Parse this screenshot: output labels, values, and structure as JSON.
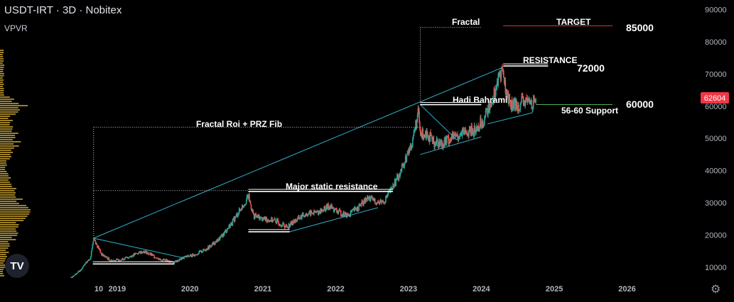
{
  "header": {
    "symbol": "USDT-IRT",
    "timeframe": "3D",
    "exchange": "Nobitex",
    "separator": "·",
    "indicator": "VPVR"
  },
  "price_badge": {
    "value": "62604",
    "color": "#f23645"
  },
  "logo_text": "TV",
  "colors": {
    "background": "#000000",
    "candle_up": "#26a69a",
    "candle_down": "#ef5350",
    "trendline": "#2fb3c9",
    "target_line": "#e53935",
    "support_line": "#4caf50",
    "volume_profile": "#b8962e",
    "text": "#ffffff",
    "axis_text": "#b2b5be"
  },
  "icons": {
    "settings": "gear-icon",
    "brand": "tradingview-logo-icon"
  },
  "annotations": {
    "fractal": "Fractal",
    "target": "TARGET",
    "target_value": "85000",
    "resistance": "RESISTANCE",
    "resistance_value": "72000",
    "hadi": "Hadi Bahrami",
    "support_value": "60000",
    "support_label": "56-60 Support",
    "fractal_roi": "Fractal Roi + PRZ Fib",
    "major_static": "Major static resistance"
  },
  "chart_data": {
    "type": "candlestick",
    "symbol": "USDT-IRT",
    "interval": "3D",
    "y_axis": {
      "scale": "linear",
      "range": [
        6000,
        93000
      ],
      "ticks": [
        10000,
        20000,
        30000,
        40000,
        50000,
        60000,
        70000,
        80000,
        90000
      ],
      "tick_labels": [
        "10000",
        "20000",
        "30000",
        "40000",
        "50000",
        "60000",
        "70000",
        "80000",
        "90000"
      ]
    },
    "x_axis": {
      "range": [
        "2018-05-15",
        "2027-01-01"
      ],
      "ticks": [
        "2018-10-01",
        "2019-01-01",
        "2020-01-01",
        "2021-01-01",
        "2022-01-01",
        "2023-01-01",
        "2024-01-01",
        "2025-01-01",
        "2026-01-01"
      ],
      "tick_labels": [
        "10",
        "2019",
        "2020",
        "2021",
        "2022",
        "2023",
        "2024",
        "2025",
        "2026"
      ]
    },
    "last_price": 62604,
    "price_path": [
      [
        "2018-05-15",
        6800
      ],
      [
        "2018-07-01",
        9000
      ],
      [
        "2018-08-20",
        13000
      ],
      [
        "2018-09-05",
        19000
      ],
      [
        "2018-10-15",
        14000
      ],
      [
        "2018-12-01",
        12000
      ],
      [
        "2019-02-01",
        12500
      ],
      [
        "2019-04-01",
        14000
      ],
      [
        "2019-05-15",
        15000
      ],
      [
        "2019-08-01",
        12500
      ],
      [
        "2019-10-15",
        11500
      ],
      [
        "2019-12-01",
        13000
      ],
      [
        "2020-02-01",
        14000
      ],
      [
        "2020-04-01",
        16000
      ],
      [
        "2020-06-01",
        19000
      ],
      [
        "2020-08-01",
        24000
      ],
      [
        "2020-10-01",
        30000
      ],
      [
        "2020-10-20",
        32000
      ],
      [
        "2020-11-15",
        26000
      ],
      [
        "2021-01-01",
        25000
      ],
      [
        "2021-03-01",
        24500
      ],
      [
        "2021-05-01",
        22500
      ],
      [
        "2021-06-01",
        24000
      ],
      [
        "2021-08-01",
        26500
      ],
      [
        "2021-10-01",
        27000
      ],
      [
        "2021-12-01",
        29000
      ],
      [
        "2022-01-01",
        27500
      ],
      [
        "2022-03-01",
        26000
      ],
      [
        "2022-05-01",
        29000
      ],
      [
        "2022-06-15",
        31500
      ],
      [
        "2022-08-01",
        30000
      ],
      [
        "2022-09-01",
        30500
      ],
      [
        "2022-10-15",
        35000
      ],
      [
        "2022-12-01",
        41000
      ],
      [
        "2023-01-15",
        48000
      ],
      [
        "2023-02-20",
        58000
      ],
      [
        "2023-03-01",
        51000
      ],
      [
        "2023-04-01",
        52000
      ],
      [
        "2023-05-01",
        49000
      ],
      [
        "2023-06-15",
        48500
      ],
      [
        "2023-08-01",
        50000
      ],
      [
        "2023-10-01",
        51500
      ],
      [
        "2023-12-01",
        52500
      ],
      [
        "2024-01-15",
        56000
      ],
      [
        "2024-03-01",
        63000
      ],
      [
        "2024-04-15",
        72000
      ],
      [
        "2024-05-01",
        65000
      ],
      [
        "2024-06-01",
        60000
      ],
      [
        "2024-07-01",
        60500
      ],
      [
        "2024-08-15",
        61500
      ],
      [
        "2024-09-15",
        61000
      ],
      [
        "2024-10-01",
        62604
      ]
    ],
    "lines": [
      {
        "name": "trendline-major",
        "points": [
          [
            "2018-09-05",
            19000
          ],
          [
            "2024-04-15",
            72000
          ]
        ]
      },
      {
        "name": "trendline-2019-lower",
        "points": [
          [
            "2018-09-05",
            19000
          ],
          [
            "2019-11-20",
            13000
          ]
        ]
      },
      {
        "name": "trendline-2022-lower",
        "points": [
          [
            "2021-05-15",
            21000
          ],
          [
            "2022-08-01",
            28500
          ]
        ]
      },
      {
        "name": "trendline-2023-upper",
        "points": [
          [
            "2023-03-01",
            60500
          ],
          [
            "2023-09-01",
            49500
          ]
        ]
      },
      {
        "name": "trendline-2023-lower",
        "points": [
          [
            "2023-03-01",
            45000
          ],
          [
            "2024-01-01",
            50500
          ]
        ]
      },
      {
        "name": "trendline-2024-lower",
        "points": [
          [
            "2024-02-01",
            54500
          ],
          [
            "2024-09-15",
            58000
          ]
        ]
      },
      {
        "name": "level-2019",
        "points": [
          [
            "2018-09-01",
            11000
          ],
          [
            "2019-10-15",
            11000
          ]
        ]
      },
      {
        "name": "level-2021-low",
        "points": [
          [
            "2020-10-20",
            21000
          ],
          [
            "2021-05-15",
            21000
          ]
        ]
      },
      {
        "name": "level-major-static",
        "points": [
          [
            "2020-10-20",
            33500
          ],
          [
            "2022-10-15",
            33500
          ]
        ]
      },
      {
        "name": "level-hadi",
        "points": [
          [
            "2023-03-01",
            60500
          ],
          [
            "2024-01-01",
            60500
          ]
        ]
      },
      {
        "name": "level-resistance",
        "points": [
          [
            "2024-04-20",
            72500
          ],
          [
            "2024-12-01",
            72500
          ]
        ]
      },
      {
        "name": "target",
        "points": [
          [
            "2024-04-20",
            85000
          ],
          [
            "2025-10-20",
            85000
          ]
        ]
      },
      {
        "name": "support",
        "points": [
          [
            "2024-10-01",
            60500
          ],
          [
            "2025-10-20",
            60500
          ]
        ]
      },
      {
        "name": "fractal-vertical",
        "points": [
          [
            "2023-03-01",
            60500
          ],
          [
            "2023-03-01",
            84500
          ]
        ]
      },
      {
        "name": "fractal-top",
        "points": [
          [
            "2023-03-01",
            84500
          ],
          [
            "2024-01-01",
            84500
          ]
        ]
      },
      {
        "name": "roi-vertical",
        "points": [
          [
            "2018-09-05",
            19000
          ],
          [
            "2018-09-05",
            53500
          ]
        ]
      },
      {
        "name": "roi-top",
        "points": [
          [
            "2018-09-05",
            53500
          ],
          [
            "2023-03-01",
            53500
          ]
        ]
      },
      {
        "name": "static-dotted",
        "points": [
          [
            "2018-09-05",
            33800
          ],
          [
            "2020-10-20",
            33800
          ]
        ]
      }
    ]
  }
}
